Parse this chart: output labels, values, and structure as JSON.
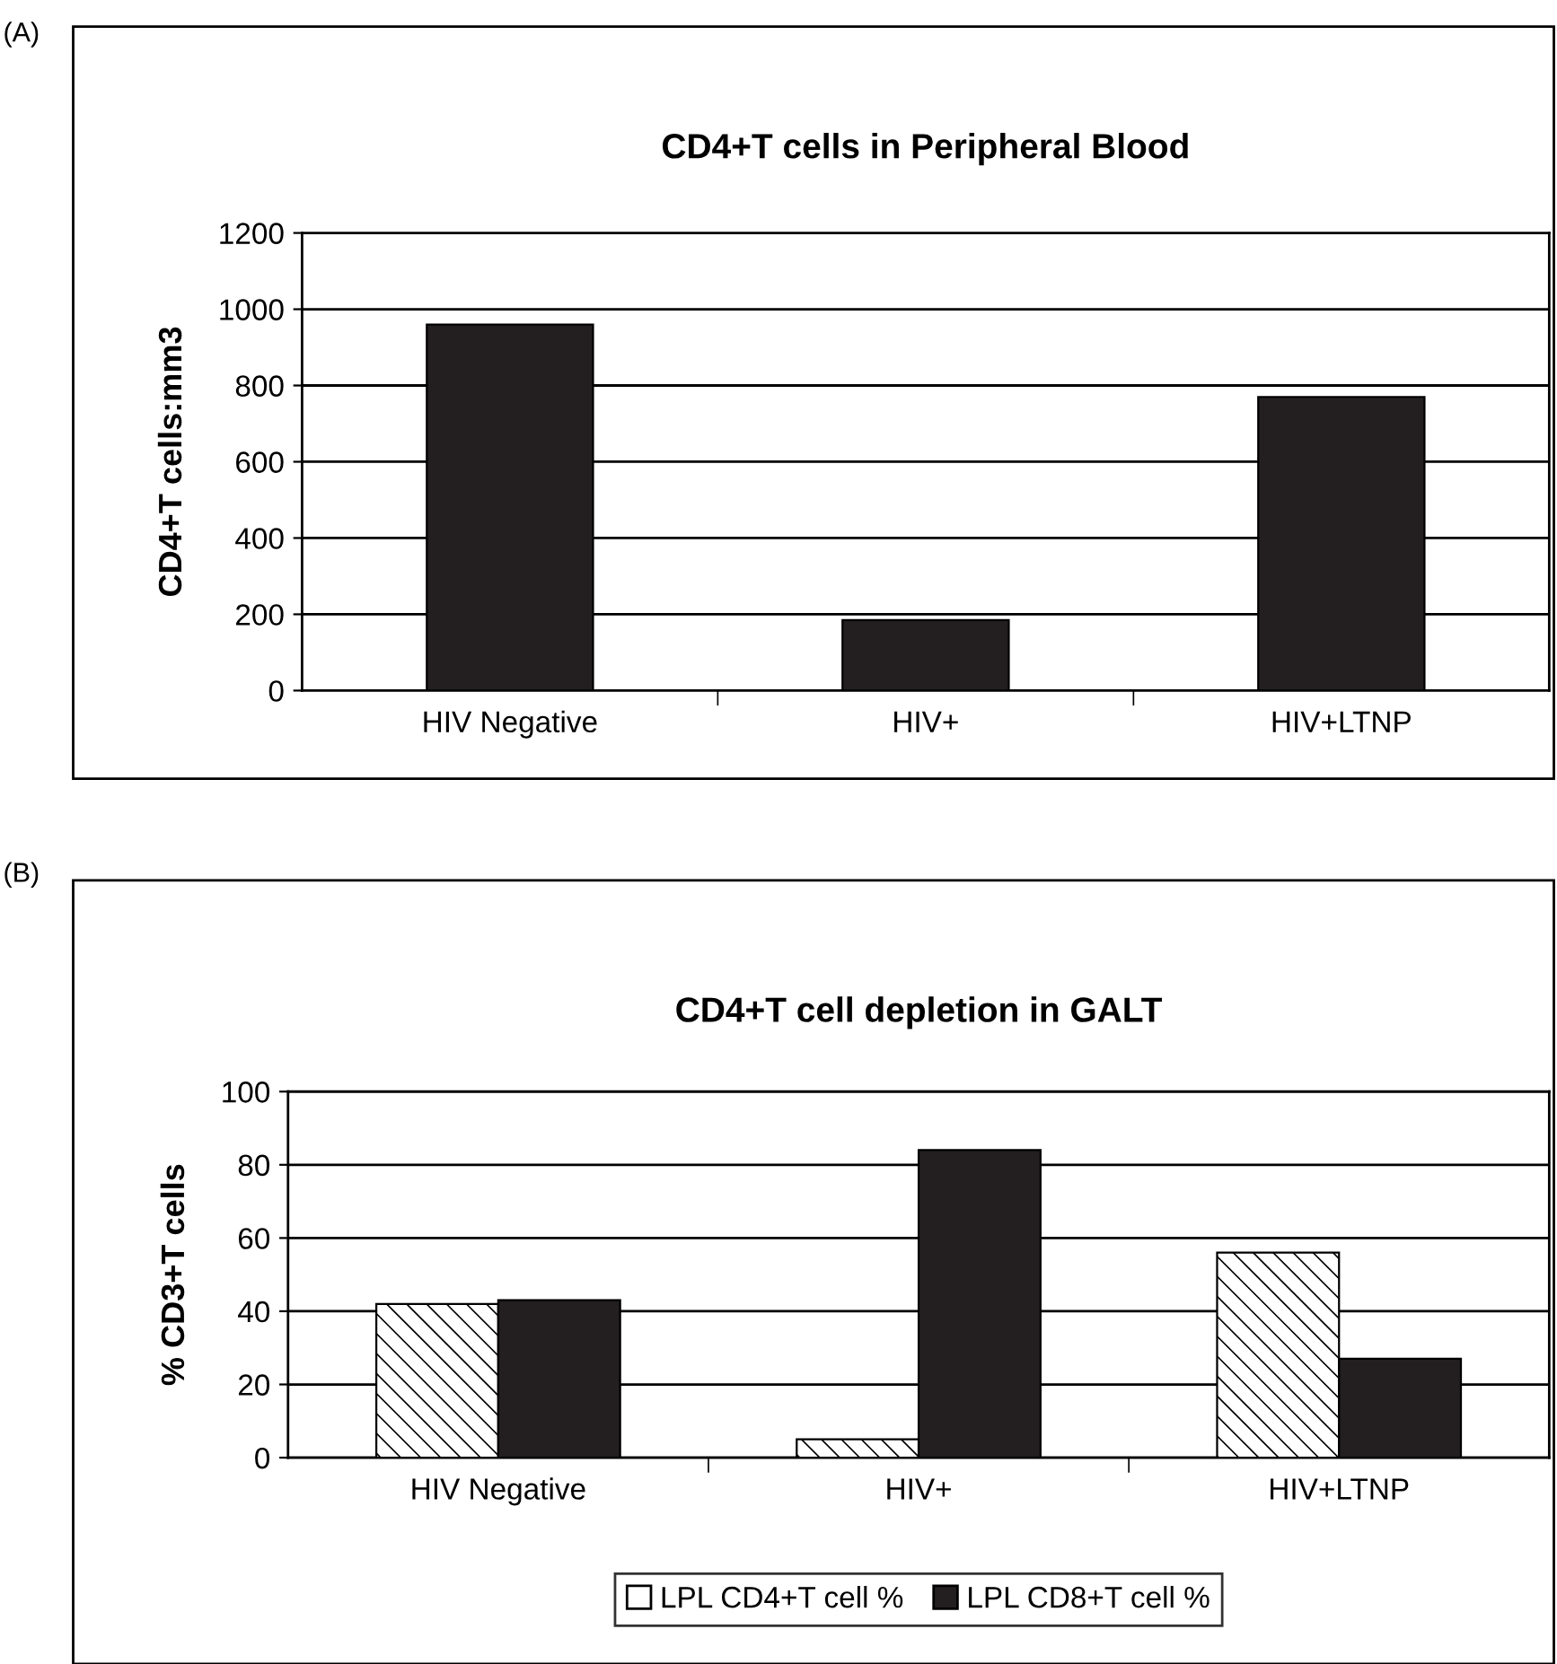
{
  "chart_data": [
    {
      "type": "bar",
      "title": "CD4+T cells in Peripheral Blood",
      "ylabel": "CD4+T cells:mm3",
      "annotations": [
        "(A)"
      ],
      "categories": [
        "HIV Negative",
        "HIV+",
        "HIV+LTNP"
      ],
      "series": [
        {
          "color": "#231f20",
          "values": [
            960,
            185,
            770
          ]
        }
      ],
      "ylim": [
        0,
        1200
      ],
      "yticks": [
        0,
        200,
        400,
        600,
        800,
        1000,
        1200
      ],
      "grid": "y",
      "legend": false
    },
    {
      "type": "bar",
      "title": "CD4+T cell depletion in GALT",
      "ylabel": "% CD3+T cells",
      "annotations": [
        "(B)"
      ],
      "categories": [
        "HIV Negative",
        "HIV+",
        "HIV+LTNP"
      ],
      "series": [
        {
          "name": "LPL CD4+T cell %",
          "color": "#ffffff",
          "values": [
            42,
            5,
            56
          ]
        },
        {
          "name": "LPL CD8+T cell %",
          "color": "#231f20",
          "values": [
            43,
            84,
            27
          ]
        }
      ],
      "ylim": [
        0,
        100
      ],
      "yticks": [
        0,
        20,
        40,
        60,
        80,
        100
      ],
      "grid": "y",
      "legend": "bottom"
    }
  ]
}
